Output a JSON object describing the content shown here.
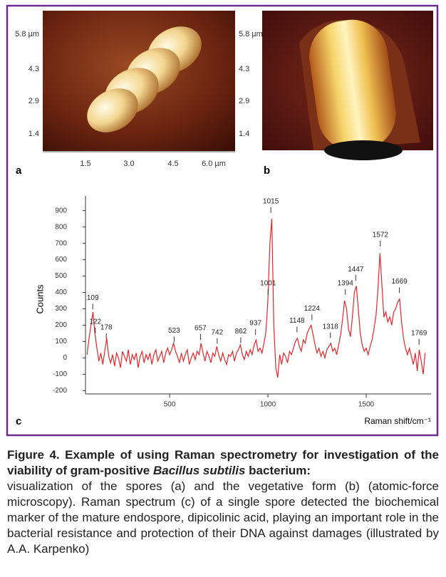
{
  "panels": {
    "a": {
      "letter": "a",
      "yticks": [
        "5.8 µm",
        "4.3",
        "2.9",
        "1.4"
      ],
      "xticks": [
        "1.5",
        "3.0",
        "4.5",
        "6.0 µm"
      ]
    },
    "b": {
      "letter": "b",
      "yticks": [
        "5.8 µm",
        "4.3",
        "2.9",
        "1.4"
      ]
    },
    "c": {
      "letter": "c"
    }
  },
  "chart_data": {
    "type": "line",
    "ylabel": "Counts",
    "xlabel": "Raman shift/cm⁻¹",
    "xlim": [
      72,
      1830
    ],
    "ylim": [
      -220,
      990
    ],
    "xticks": [
      500,
      1000,
      1500
    ],
    "yticks": [
      -200,
      -100,
      0,
      100,
      200,
      300,
      400,
      500,
      600,
      700,
      800,
      900
    ],
    "x": [
      80,
      90,
      100,
      110,
      120,
      130,
      140,
      150,
      160,
      170,
      180,
      190,
      200,
      210,
      220,
      230,
      240,
      250,
      260,
      270,
      280,
      290,
      300,
      310,
      320,
      330,
      340,
      350,
      360,
      370,
      380,
      390,
      400,
      410,
      420,
      430,
      440,
      450,
      460,
      470,
      480,
      490,
      500,
      510,
      520,
      530,
      540,
      550,
      560,
      570,
      580,
      590,
      600,
      610,
      620,
      630,
      640,
      650,
      660,
      670,
      680,
      690,
      700,
      710,
      720,
      730,
      740,
      750,
      760,
      770,
      780,
      790,
      800,
      810,
      820,
      830,
      840,
      850,
      860,
      870,
      880,
      890,
      900,
      910,
      920,
      930,
      940,
      950,
      960,
      970,
      980,
      990,
      1000,
      1010,
      1020,
      1030,
      1040,
      1050,
      1060,
      1070,
      1080,
      1090,
      1100,
      1110,
      1120,
      1130,
      1140,
      1150,
      1160,
      1170,
      1180,
      1190,
      1200,
      1210,
      1220,
      1230,
      1240,
      1250,
      1260,
      1270,
      1280,
      1290,
      1300,
      1310,
      1320,
      1330,
      1340,
      1350,
      1360,
      1370,
      1380,
      1390,
      1400,
      1410,
      1420,
      1430,
      1440,
      1450,
      1460,
      1470,
      1480,
      1490,
      1500,
      1510,
      1520,
      1530,
      1540,
      1550,
      1560,
      1570,
      1580,
      1590,
      1600,
      1610,
      1620,
      1630,
      1640,
      1650,
      1660,
      1670,
      1680,
      1690,
      1700,
      1710,
      1720,
      1730,
      1740,
      1750,
      1760,
      1770,
      1780,
      1790,
      1800
    ],
    "series": [
      {
        "color": "#e3262b",
        "values": [
          20,
          120,
          200,
          280,
          150,
          60,
          -20,
          30,
          -40,
          40,
          120,
          10,
          -30,
          20,
          -50,
          30,
          0,
          -60,
          40,
          10,
          -20,
          50,
          -40,
          20,
          -10,
          30,
          -60,
          10,
          40,
          -30,
          20,
          -10,
          30,
          -40,
          20,
          50,
          -20,
          10,
          40,
          -30,
          30,
          60,
          20,
          50,
          90,
          40,
          10,
          -30,
          30,
          -20,
          20,
          50,
          -40,
          0,
          30,
          -10,
          40,
          20,
          90,
          30,
          -20,
          40,
          10,
          -30,
          30,
          10,
          70,
          20,
          -20,
          30,
          -10,
          -40,
          20,
          10,
          40,
          -20,
          30,
          50,
          80,
          20,
          -10,
          40,
          10,
          50,
          20,
          80,
          110,
          40,
          60,
          30,
          90,
          160,
          350,
          700,
          850,
          200,
          -60,
          -120,
          20,
          -40,
          30,
          10,
          -30,
          40,
          20,
          60,
          100,
          120,
          70,
          40,
          110,
          90,
          150,
          180,
          200,
          140,
          80,
          30,
          60,
          10,
          40,
          0,
          50,
          70,
          90,
          40,
          60,
          20,
          80,
          140,
          240,
          350,
          300,
          180,
          130,
          250,
          400,
          440,
          300,
          150,
          80,
          40,
          60,
          20,
          70,
          110,
          180,
          260,
          420,
          640,
          450,
          250,
          280,
          220,
          250,
          200,
          280,
          300,
          340,
          360,
          220,
          120,
          60,
          20,
          60,
          10,
          -40,
          30,
          -80,
          50,
          -20,
          -100,
          30
        ]
      }
    ],
    "peak_labels": [
      {
        "x": 109,
        "y": 270
      },
      {
        "x": 122,
        "y": 125
      },
      {
        "x": 178,
        "y": 90
      },
      {
        "x": 523,
        "y": 70
      },
      {
        "x": 657,
        "y": 85
      },
      {
        "x": 742,
        "y": 60
      },
      {
        "x": 862,
        "y": 65
      },
      {
        "x": 937,
        "y": 115
      },
      {
        "x": 1001,
        "y": 360
      },
      {
        "x": 1015,
        "y": 860
      },
      {
        "x": 1148,
        "y": 130
      },
      {
        "x": 1224,
        "y": 205
      },
      {
        "x": 1318,
        "y": 95
      },
      {
        "x": 1394,
        "y": 360
      },
      {
        "x": 1447,
        "y": 445
      },
      {
        "x": 1572,
        "y": 655
      },
      {
        "x": 1669,
        "y": 370
      },
      {
        "x": 1769,
        "y": 55
      }
    ]
  },
  "caption": {
    "title": "Figure 4. Example of using Raman spectrometry for investigation of the viability of gram-positive",
    "species": "Bacillus subtilis",
    "title_end": "bacterium:",
    "text": "visualization of the spores (a) and the vegetative form (b) (atomic-force microscopy). Raman spectrum (c) of a single spore detected the biochemical marker of the mature endospore, dipicolinic acid, playing an important role in the bacterial resistance and protection of their DNA against damages (illustrated by A.A. Karpenko)"
  }
}
